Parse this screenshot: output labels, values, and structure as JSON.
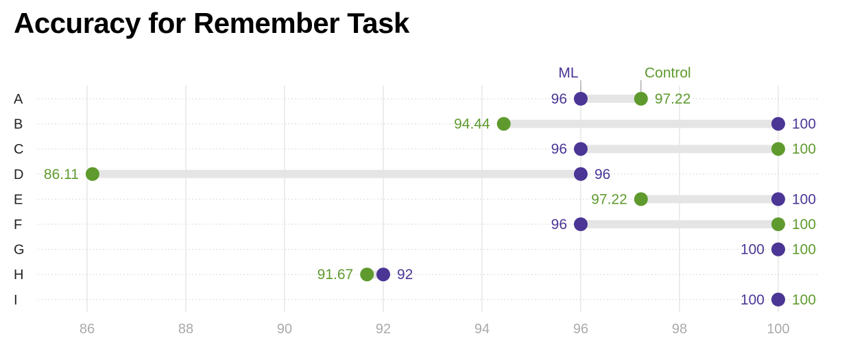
{
  "title": "Accuracy for Remember Task",
  "colors": {
    "ml": "#4b3595",
    "control": "#5f9a2e",
    "connector": "#e5e5e5",
    "grid": "#e6e6e6",
    "row_line": "#d9d9d9"
  },
  "chart_data": {
    "type": "dumbbell",
    "title": "Accuracy for Remember Task",
    "xlabel": "",
    "ylabel": "",
    "xlim": [
      85,
      101
    ],
    "x_ticks": [
      86,
      88,
      90,
      92,
      94,
      96,
      98,
      100
    ],
    "grid": true,
    "legend_placement": "top, annotating first row",
    "categories": [
      "A",
      "B",
      "C",
      "D",
      "E",
      "F",
      "G",
      "H",
      "I"
    ],
    "series": [
      {
        "name": "ML",
        "values": [
          96,
          100,
          96,
          96,
          100,
          96,
          100,
          92,
          100
        ]
      },
      {
        "name": "Control",
        "values": [
          97.22,
          94.44,
          100,
          86.11,
          97.22,
          100,
          100,
          91.67,
          100
        ]
      }
    ],
    "value_labels": {
      "ML": [
        "96",
        "100",
        "96",
        "96",
        "100",
        "96",
        "100",
        "92",
        "100"
      ],
      "Control": [
        "97.22",
        "94.44",
        "100",
        "86.11",
        "97.22",
        "100",
        "100",
        "91.67",
        "100"
      ]
    }
  }
}
